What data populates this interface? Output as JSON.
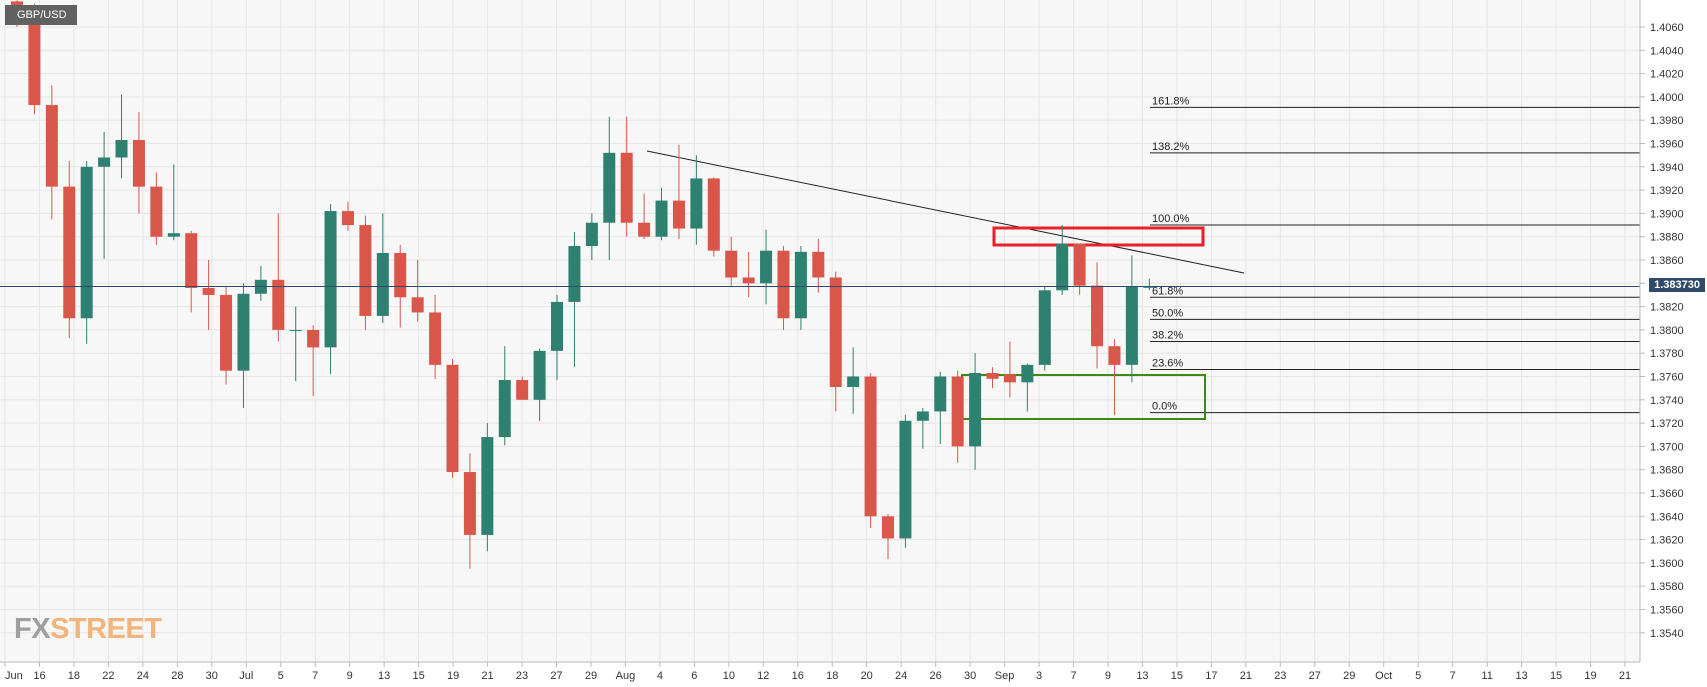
{
  "symbol": "GBP/USD",
  "current_price_label": "1.383730",
  "watermark": {
    "part1": "FX",
    "part2": "STREET"
  },
  "colors": {
    "up": "#2e8070",
    "down": "#d9574a",
    "grid": "#e6e6e6",
    "background": "#f7f7f7",
    "price_line": "#2f4a6b",
    "resistance_box": "#e8202a",
    "support_box": "#3d8a12",
    "trendline": "#222222"
  },
  "y_axis": {
    "ticks": [
      "1.4060",
      "1.4040",
      "1.4020",
      "1.4000",
      "1.3980",
      "1.3960",
      "1.3940",
      "1.3920",
      "1.3900",
      "1.3880",
      "1.3860",
      "1.3840",
      "1.3820",
      "1.3800",
      "1.3780",
      "1.3760",
      "1.3740",
      "1.3720",
      "1.3700",
      "1.3680",
      "1.3660",
      "1.3640",
      "1.3620",
      "1.3600",
      "1.3580",
      "1.3560",
      "1.3540"
    ]
  },
  "x_axis": {
    "ticks": [
      "Jun",
      "16",
      "18",
      "22",
      "24",
      "28",
      "30",
      "Jul",
      "5",
      "7",
      "9",
      "13",
      "15",
      "19",
      "21",
      "23",
      "27",
      "29",
      "Aug",
      "4",
      "6",
      "10",
      "12",
      "16",
      "18",
      "20",
      "24",
      "26",
      "30",
      "Sep",
      "3",
      "7",
      "9",
      "13",
      "15",
      "17",
      "21",
      "23",
      "27",
      "29",
      "Oct",
      "5",
      "7",
      "11",
      "13",
      "15",
      "19",
      "21"
    ]
  },
  "fibonacci": [
    {
      "label": "161.8%",
      "price": 1.3991
    },
    {
      "label": "138.2%",
      "price": 1.3952
    },
    {
      "label": "100.0%",
      "price": 1.389
    },
    {
      "label": "61.8%",
      "price": 1.3828
    },
    {
      "label": "50.0%",
      "price": 1.3809
    },
    {
      "label": "38.2%",
      "price": 1.379
    },
    {
      "label": "23.6%",
      "price": 1.3766
    },
    {
      "label": "0.0%",
      "price": 1.3729
    }
  ],
  "chart_data": {
    "type": "candlestick",
    "title": "GBP/USD",
    "current_price": 1.38373,
    "ylim": [
      1.3527,
      1.4083
    ],
    "candles": [
      {
        "o": 1.4082,
        "h": 1.4083,
        "l": 1.406,
        "c": 1.4078
      },
      {
        "o": 1.4078,
        "h": 1.408,
        "l": 1.3985,
        "c": 1.3993
      },
      {
        "o": 1.3993,
        "h": 1.401,
        "l": 1.3895,
        "c": 1.3923
      },
      {
        "o": 1.3923,
        "h": 1.3945,
        "l": 1.3793,
        "c": 1.381
      },
      {
        "o": 1.381,
        "h": 1.3945,
        "l": 1.3788,
        "c": 1.394
      },
      {
        "o": 1.394,
        "h": 1.397,
        "l": 1.3861,
        "c": 1.3948
      },
      {
        "o": 1.3948,
        "h": 1.4002,
        "l": 1.393,
        "c": 1.3963
      },
      {
        "o": 1.3963,
        "h": 1.3987,
        "l": 1.39,
        "c": 1.3923
      },
      {
        "o": 1.3923,
        "h": 1.3935,
        "l": 1.3873,
        "c": 1.388
      },
      {
        "o": 1.388,
        "h": 1.3942,
        "l": 1.3877,
        "c": 1.3883
      },
      {
        "o": 1.3883,
        "h": 1.3885,
        "l": 1.3815,
        "c": 1.3836
      },
      {
        "o": 1.3836,
        "h": 1.386,
        "l": 1.38,
        "c": 1.383
      },
      {
        "o": 1.383,
        "h": 1.3837,
        "l": 1.3753,
        "c": 1.3765
      },
      {
        "o": 1.3765,
        "h": 1.384,
        "l": 1.3733,
        "c": 1.3831
      },
      {
        "o": 1.3831,
        "h": 1.3855,
        "l": 1.3825,
        "c": 1.3843
      },
      {
        "o": 1.3843,
        "h": 1.39,
        "l": 1.379,
        "c": 1.38
      },
      {
        "o": 1.38,
        "h": 1.382,
        "l": 1.3756,
        "c": 1.38
      },
      {
        "o": 1.38,
        "h": 1.3804,
        "l": 1.3743,
        "c": 1.3785
      },
      {
        "o": 1.3785,
        "h": 1.3908,
        "l": 1.3762,
        "c": 1.3902
      },
      {
        "o": 1.3902,
        "h": 1.391,
        "l": 1.3885,
        "c": 1.389
      },
      {
        "o": 1.389,
        "h": 1.3898,
        "l": 1.38,
        "c": 1.3812
      },
      {
        "o": 1.3812,
        "h": 1.39,
        "l": 1.3806,
        "c": 1.3866
      },
      {
        "o": 1.3866,
        "h": 1.3873,
        "l": 1.3802,
        "c": 1.3828
      },
      {
        "o": 1.3828,
        "h": 1.386,
        "l": 1.3807,
        "c": 1.3815
      },
      {
        "o": 1.3815,
        "h": 1.383,
        "l": 1.3758,
        "c": 1.377
      },
      {
        "o": 1.377,
        "h": 1.3775,
        "l": 1.3673,
        "c": 1.3678
      },
      {
        "o": 1.3678,
        "h": 1.3694,
        "l": 1.3595,
        "c": 1.3624
      },
      {
        "o": 1.3624,
        "h": 1.372,
        "l": 1.361,
        "c": 1.3708
      },
      {
        "o": 1.3708,
        "h": 1.3786,
        "l": 1.3701,
        "c": 1.3757
      },
      {
        "o": 1.3757,
        "h": 1.376,
        "l": 1.3742,
        "c": 1.374
      },
      {
        "o": 1.374,
        "h": 1.3784,
        "l": 1.3722,
        "c": 1.3782
      },
      {
        "o": 1.3782,
        "h": 1.383,
        "l": 1.3757,
        "c": 1.3824
      },
      {
        "o": 1.3824,
        "h": 1.3884,
        "l": 1.3768,
        "c": 1.3872
      },
      {
        "o": 1.3872,
        "h": 1.39,
        "l": 1.386,
        "c": 1.3892
      },
      {
        "o": 1.3892,
        "h": 1.3983,
        "l": 1.386,
        "c": 1.3952
      },
      {
        "o": 1.3952,
        "h": 1.3983,
        "l": 1.388,
        "c": 1.3892
      },
      {
        "o": 1.3892,
        "h": 1.3917,
        "l": 1.3878,
        "c": 1.388
      },
      {
        "o": 1.388,
        "h": 1.3922,
        "l": 1.3877,
        "c": 1.3911
      },
      {
        "o": 1.3911,
        "h": 1.3959,
        "l": 1.3878,
        "c": 1.3887
      },
      {
        "o": 1.3887,
        "h": 1.395,
        "l": 1.3873,
        "c": 1.393
      },
      {
        "o": 1.393,
        "h": 1.3931,
        "l": 1.3863,
        "c": 1.3868
      },
      {
        "o": 1.3868,
        "h": 1.388,
        "l": 1.3838,
        "c": 1.3845
      },
      {
        "o": 1.3845,
        "h": 1.3867,
        "l": 1.3828,
        "c": 1.384
      },
      {
        "o": 1.384,
        "h": 1.3886,
        "l": 1.3822,
        "c": 1.3868
      },
      {
        "o": 1.3868,
        "h": 1.3872,
        "l": 1.38,
        "c": 1.381
      },
      {
        "o": 1.381,
        "h": 1.3872,
        "l": 1.38,
        "c": 1.3867
      },
      {
        "o": 1.3867,
        "h": 1.3878,
        "l": 1.3832,
        "c": 1.3845
      },
      {
        "o": 1.3845,
        "h": 1.385,
        "l": 1.373,
        "c": 1.3751
      },
      {
        "o": 1.3751,
        "h": 1.3785,
        "l": 1.3728,
        "c": 1.376
      },
      {
        "o": 1.376,
        "h": 1.3763,
        "l": 1.363,
        "c": 1.364
      },
      {
        "o": 1.364,
        "h": 1.3642,
        "l": 1.3603,
        "c": 1.3621
      },
      {
        "o": 1.3621,
        "h": 1.3727,
        "l": 1.3613,
        "c": 1.3722
      },
      {
        "o": 1.3722,
        "h": 1.3733,
        "l": 1.3698,
        "c": 1.373
      },
      {
        "o": 1.373,
        "h": 1.3764,
        "l": 1.3702,
        "c": 1.376
      },
      {
        "o": 1.376,
        "h": 1.3765,
        "l": 1.3686,
        "c": 1.37
      },
      {
        "o": 1.37,
        "h": 1.378,
        "l": 1.368,
        "c": 1.3763
      },
      {
        "o": 1.3763,
        "h": 1.3768,
        "l": 1.375,
        "c": 1.3758
      },
      {
        "o": 1.3762,
        "h": 1.379,
        "l": 1.3742,
        "c": 1.3755
      },
      {
        "o": 1.3755,
        "h": 1.3771,
        "l": 1.373,
        "c": 1.377
      },
      {
        "o": 1.377,
        "h": 1.3837,
        "l": 1.3765,
        "c": 1.3834
      },
      {
        "o": 1.3834,
        "h": 1.389,
        "l": 1.383,
        "c": 1.3874
      },
      {
        "o": 1.3874,
        "h": 1.3874,
        "l": 1.383,
        "c": 1.3838
      },
      {
        "o": 1.3838,
        "h": 1.3858,
        "l": 1.3767,
        "c": 1.3786
      },
      {
        "o": 1.3786,
        "h": 1.3792,
        "l": 1.3727,
        "c": 1.377
      },
      {
        "o": 1.377,
        "h": 1.3864,
        "l": 1.3755,
        "c": 1.3837
      },
      {
        "o": 1.3837,
        "h": 1.3844,
        "l": 1.3834,
        "c": 1.3837
      }
    ]
  }
}
